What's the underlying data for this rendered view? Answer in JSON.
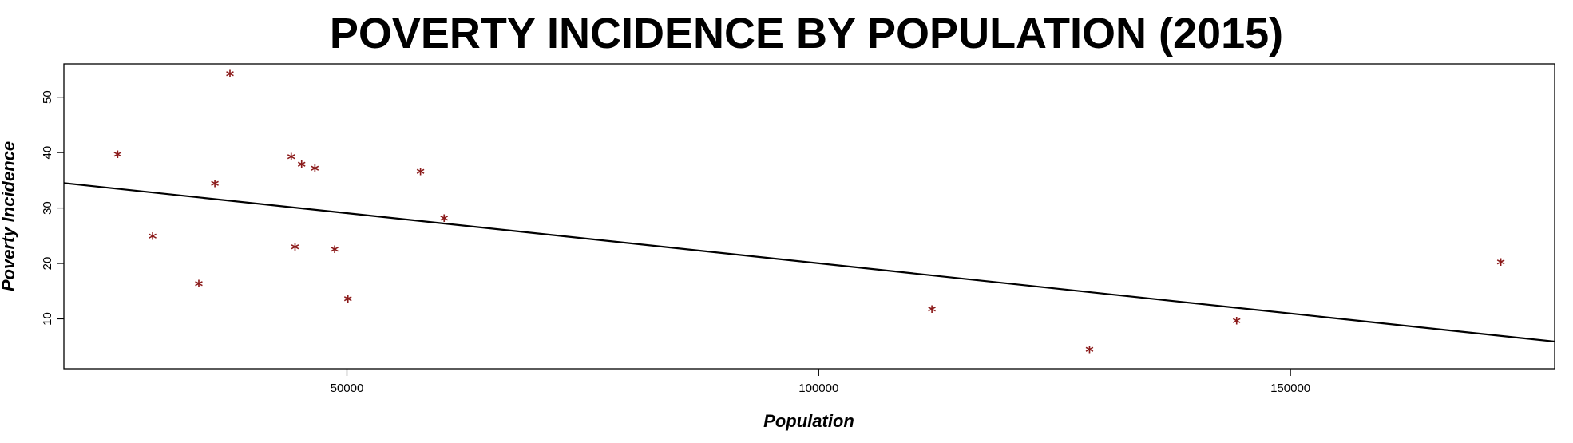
{
  "chart_data": {
    "type": "scatter",
    "title": "POVERTY INCIDENCE BY POPULATION (2015)",
    "xlabel": "Population",
    "ylabel": "Poverty Incidence",
    "xlim": [
      20000,
      178000
    ],
    "ylim": [
      1,
      56
    ],
    "xticks": [
      50000,
      100000,
      150000
    ],
    "yticks": [
      10,
      20,
      30,
      40,
      50
    ],
    "grid": false,
    "legend": "none",
    "point_color": "#8b1a1a",
    "line_color": "#000000",
    "marker": "*",
    "points": [
      {
        "x": 25700,
        "y": 39.2
      },
      {
        "x": 29400,
        "y": 24.5
      },
      {
        "x": 34300,
        "y": 15.9
      },
      {
        "x": 36000,
        "y": 34.0
      },
      {
        "x": 37600,
        "y": 53.8
      },
      {
        "x": 44100,
        "y": 38.8
      },
      {
        "x": 44500,
        "y": 22.5
      },
      {
        "x": 45200,
        "y": 37.4
      },
      {
        "x": 46600,
        "y": 36.7
      },
      {
        "x": 48700,
        "y": 22.1
      },
      {
        "x": 50100,
        "y": 13.2
      },
      {
        "x": 57800,
        "y": 36.1
      },
      {
        "x": 60300,
        "y": 27.7
      },
      {
        "x": 112000,
        "y": 11.3
      },
      {
        "x": 128700,
        "y": 4.0
      },
      {
        "x": 144300,
        "y": 9.2
      },
      {
        "x": 172300,
        "y": 19.8
      }
    ],
    "trendline": {
      "x": [
        20000,
        178000
      ],
      "y": [
        34.5,
        5.9
      ]
    }
  }
}
